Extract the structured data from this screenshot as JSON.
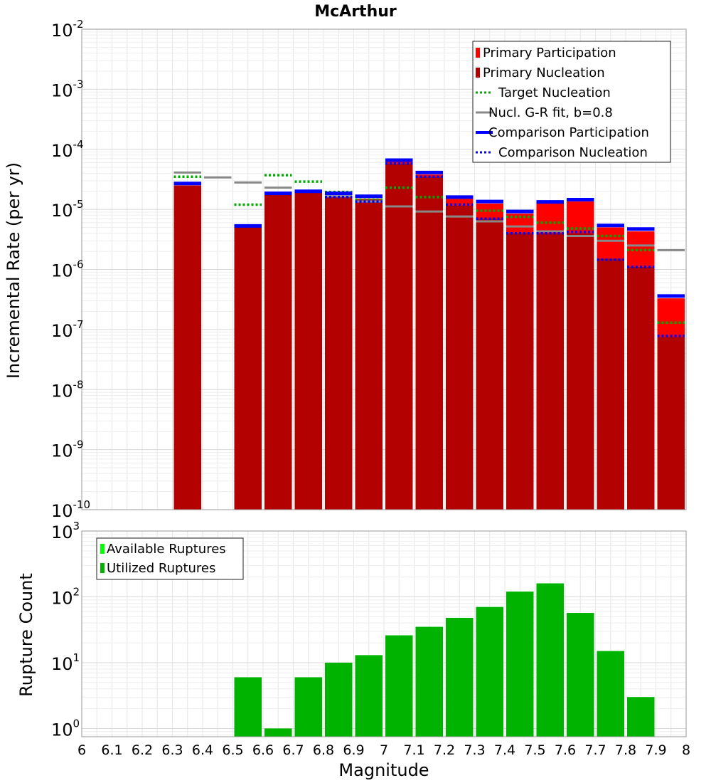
{
  "chart_data": [
    {
      "type": "bar",
      "title": "McArthur",
      "ylabel": "Incremental Rate (per yr)",
      "yscale": "log",
      "ylim": [
        1e-10,
        0.01
      ],
      "xlim": [
        6.0,
        8.0
      ],
      "bin_width": 0.1,
      "y_ticks": [
        {
          "base": "10",
          "exp": "-10"
        },
        {
          "base": "10",
          "exp": "-9"
        },
        {
          "base": "10",
          "exp": "-8"
        },
        {
          "base": "10",
          "exp": "-7"
        },
        {
          "base": "10",
          "exp": "-6"
        },
        {
          "base": "10",
          "exp": "-5"
        },
        {
          "base": "10",
          "exp": "-4"
        },
        {
          "base": "10",
          "exp": "-3"
        },
        {
          "base": "10",
          "exp": "-2"
        }
      ],
      "grid": true,
      "legend": "top-right",
      "bins": [
        6.35,
        6.45,
        6.55,
        6.65,
        6.75,
        6.85,
        6.95,
        7.05,
        7.15,
        7.25,
        7.35,
        7.45,
        7.55,
        7.65,
        7.75,
        7.85,
        7.95
      ],
      "series": [
        {
          "name": "Primary Participation",
          "kind": "bar",
          "color": "#ff0000",
          "values": [
            2.5e-05,
            null,
            5e-06,
            1.75e-05,
            1.9e-05,
            1.7e-05,
            1.5e-05,
            6.2e-05,
            3.8e-05,
            1.5e-05,
            1.25e-05,
            8.5e-06,
            1.25e-05,
            1.35e-05,
            5e-06,
            4.3e-06,
            3.3e-07
          ]
        },
        {
          "name": "Primary Nucleation",
          "kind": "bar",
          "color": "#b30000",
          "values": [
            2.5e-05,
            null,
            5e-06,
            1.75e-05,
            1.9e-05,
            1.6e-05,
            1.35e-05,
            5.8e-05,
            3.5e-05,
            1.15e-05,
            7e-06,
            4e-06,
            4e-06,
            4e-06,
            1.5e-06,
            1.1e-06,
            7.5e-08
          ]
        },
        {
          "name": "Target Nucleation",
          "kind": "dotted-line",
          "color": "#00aa00",
          "values": [
            3.5e-05,
            null,
            1.2e-05,
            3.7e-05,
            2.9e-05,
            1.95e-05,
            1.45e-05,
            2.3e-05,
            1.6e-05,
            1.2e-05,
            9.5e-06,
            7.5e-06,
            6e-06,
            4.8e-06,
            3.6e-06,
            2.1e-06,
            1.3e-07
          ]
        },
        {
          "name": "Nucl. G-R fit, b=0.8",
          "kind": "solid-line",
          "color": "#888888",
          "values": [
            4.1e-05,
            3.4e-05,
            2.8e-05,
            2.3e-05,
            2e-05,
            1.65e-05,
            1.35e-05,
            1.12e-05,
            9.2e-06,
            7.6e-06,
            6.3e-06,
            5.2e-06,
            4.3e-06,
            3.6e-06,
            3e-06,
            2.5e-06,
            2.1e-06
          ]
        },
        {
          "name": "Comparison Participation",
          "kind": "solid-line",
          "color": "#0000ff",
          "values": [
            2.7e-05,
            null,
            5.3e-06,
            1.85e-05,
            2e-05,
            1.85e-05,
            1.65e-05,
            6.6e-05,
            4.1e-05,
            1.6e-05,
            1.35e-05,
            9.2e-06,
            1.33e-05,
            1.45e-05,
            5.4e-06,
            4.7e-06,
            3.6e-07
          ]
        },
        {
          "name": "Comparison Nucleation",
          "kind": "dotted-line",
          "color": "#0000ff",
          "values": [
            null,
            null,
            null,
            null,
            null,
            1.6e-05,
            1.35e-05,
            5.8e-05,
            3.5e-05,
            1.2e-05,
            7e-06,
            4e-06,
            4e-06,
            4.2e-06,
            1.45e-06,
            1.1e-06,
            7.8e-08
          ]
        }
      ]
    },
    {
      "type": "bar",
      "xlabel": "Magnitude",
      "ylabel": "Rupture Count",
      "yscale": "log",
      "ylim": [
        0.75,
        1000
      ],
      "xlim": [
        6.0,
        8.0
      ],
      "x_ticks": [
        "6",
        "6.1",
        "6.2",
        "6.3",
        "6.4",
        "6.5",
        "6.6",
        "6.7",
        "6.8",
        "6.9",
        "7",
        "7.1",
        "7.2",
        "7.3",
        "7.4",
        "7.5",
        "7.6",
        "7.7",
        "7.8",
        "7.9",
        "8"
      ],
      "y_ticks": [
        {
          "base": "10",
          "exp": "0"
        },
        {
          "base": "10",
          "exp": "1"
        },
        {
          "base": "10",
          "exp": "2"
        },
        {
          "base": "10",
          "exp": "3"
        }
      ],
      "grid": true,
      "legend": "top-left",
      "bin_width": 0.1,
      "bins": [
        6.55,
        6.65,
        6.75,
        6.85,
        6.95,
        7.05,
        7.15,
        7.25,
        7.35,
        7.45,
        7.55,
        7.65,
        7.75,
        7.85
      ],
      "series": [
        {
          "name": "Available Ruptures",
          "kind": "bar",
          "color": "#00ff00",
          "values": [
            6,
            1,
            6,
            10,
            13,
            26,
            35,
            48,
            70,
            120,
            160,
            57,
            15,
            3
          ]
        },
        {
          "name": "Utilized Ruptures",
          "kind": "bar",
          "color": "#00b300",
          "values": [
            6,
            1,
            6,
            10,
            13,
            26,
            35,
            48,
            70,
            120,
            160,
            57,
            15,
            3
          ]
        }
      ]
    }
  ]
}
